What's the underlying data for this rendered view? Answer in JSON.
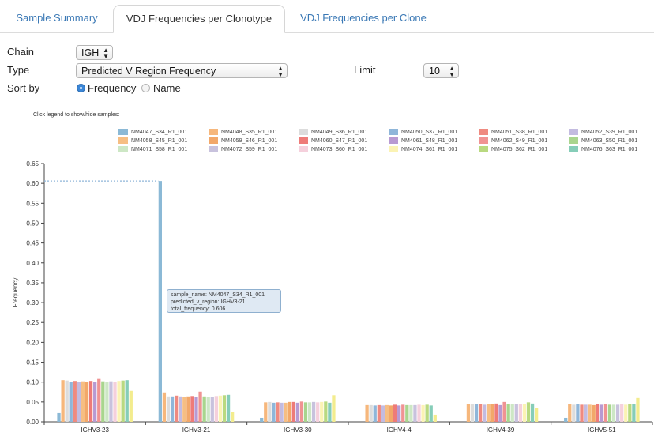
{
  "tabs": [
    {
      "label": "Sample Summary"
    },
    {
      "label": "VDJ Frequencies per Clonotype"
    },
    {
      "label": "VDJ Frequencies per Clone"
    }
  ],
  "controls": {
    "chain_label": "Chain",
    "chain_value": "IGH",
    "type_label": "Type",
    "type_value": "Predicted V Region Frequency",
    "limit_label": "Limit",
    "limit_value": "10",
    "sort_label": "Sort by",
    "sort_options": [
      "Frequency",
      "Name"
    ],
    "sort_selected": "Frequency"
  },
  "legend_hint": "Click legend to show/hide samples:",
  "tooltip": {
    "line1": "sample_name: NM4047_S34_R1_001",
    "line2": "predicted_v_region: IGHV3-21",
    "line3": "total_frequency: 0.606"
  },
  "chart_data": {
    "type": "bar",
    "ylabel": "Frequency",
    "ylim": [
      0,
      0.65
    ],
    "yticks": [
      0.0,
      0.05,
      0.1,
      0.15,
      0.2,
      0.25,
      0.3,
      0.35,
      0.4,
      0.45,
      0.5,
      0.55,
      0.6,
      0.65
    ],
    "categories": [
      "IGHV3-23",
      "IGHV3-21",
      "IGHV3-30",
      "IGHV4-4",
      "IGHV4-39",
      "IGHV5-51"
    ],
    "reference_line": 0.606,
    "series": [
      {
        "name": "NM4047_S34_R1_001",
        "color": "#8bb9d6",
        "values": [
          0.022,
          0.606,
          0.01,
          0.0,
          0.0,
          0.01
        ]
      },
      {
        "name": "NM4048_S35_R1_001",
        "color": "#f6b77c",
        "values": [
          0.105,
          0.074,
          0.049,
          0.042,
          0.044,
          0.044
        ]
      },
      {
        "name": "NM4049_S36_R1_001",
        "color": "#dcdcdc",
        "values": [
          0.104,
          0.064,
          0.05,
          0.042,
          0.045,
          0.043
        ]
      },
      {
        "name": "NM4050_S37_R1_001",
        "color": "#8fb6d9",
        "values": [
          0.1,
          0.064,
          0.048,
          0.041,
          0.045,
          0.044
        ]
      },
      {
        "name": "NM4051_S38_R1_001",
        "color": "#ef8a80",
        "values": [
          0.103,
          0.066,
          0.049,
          0.042,
          0.044,
          0.043
        ]
      },
      {
        "name": "NM4052_S39_R1_001",
        "color": "#c3bbe0",
        "values": [
          0.101,
          0.064,
          0.048,
          0.041,
          0.043,
          0.043
        ]
      },
      {
        "name": "NM4058_S45_R1_001",
        "color": "#f6be83",
        "values": [
          0.102,
          0.062,
          0.048,
          0.042,
          0.044,
          0.043
        ]
      },
      {
        "name": "NM4059_S46_R1_001",
        "color": "#f2a86a",
        "values": [
          0.101,
          0.064,
          0.05,
          0.041,
          0.045,
          0.042
        ]
      },
      {
        "name": "NM4060_S47_R1_001",
        "color": "#ee7b78",
        "values": [
          0.103,
          0.065,
          0.05,
          0.043,
          0.046,
          0.044
        ]
      },
      {
        "name": "NM4061_S48_R1_001",
        "color": "#b89ad2",
        "values": [
          0.1,
          0.062,
          0.048,
          0.041,
          0.042,
          0.043
        ]
      },
      {
        "name": "NM4062_S49_R1_001",
        "color": "#f09393",
        "values": [
          0.108,
          0.076,
          0.051,
          0.043,
          0.05,
          0.044
        ]
      },
      {
        "name": "NM4063_S50_R1_001",
        "color": "#a9d58e",
        "values": [
          0.102,
          0.064,
          0.049,
          0.042,
          0.044,
          0.043
        ]
      },
      {
        "name": "NM4071_S58_R1_001",
        "color": "#cde7c5",
        "values": [
          0.101,
          0.062,
          0.049,
          0.042,
          0.044,
          0.043
        ]
      },
      {
        "name": "NM4072_S59_R1_001",
        "color": "#c8c2dd",
        "values": [
          0.102,
          0.063,
          0.05,
          0.042,
          0.044,
          0.043
        ]
      },
      {
        "name": "NM4073_S60_R1_001",
        "color": "#f5d0dc",
        "values": [
          0.101,
          0.065,
          0.049,
          0.043,
          0.045,
          0.044
        ]
      },
      {
        "name": "NM4074_S61_R1_001",
        "color": "#fbf3b4",
        "values": [
          0.103,
          0.066,
          0.05,
          0.042,
          0.045,
          0.043
        ]
      },
      {
        "name": "NM4075_S62_R1_001",
        "color": "#b9d980",
        "values": [
          0.104,
          0.067,
          0.051,
          0.043,
          0.049,
          0.044
        ]
      },
      {
        "name": "NM4076_S63_R1_001",
        "color": "#86cdb8",
        "values": [
          0.105,
          0.068,
          0.048,
          0.041,
          0.046,
          0.045
        ]
      },
      {
        "name": "",
        "color": "#f3ec8e",
        "values": [
          0.078,
          0.025,
          0.067,
          0.018,
          0.034,
          0.06
        ]
      }
    ]
  }
}
